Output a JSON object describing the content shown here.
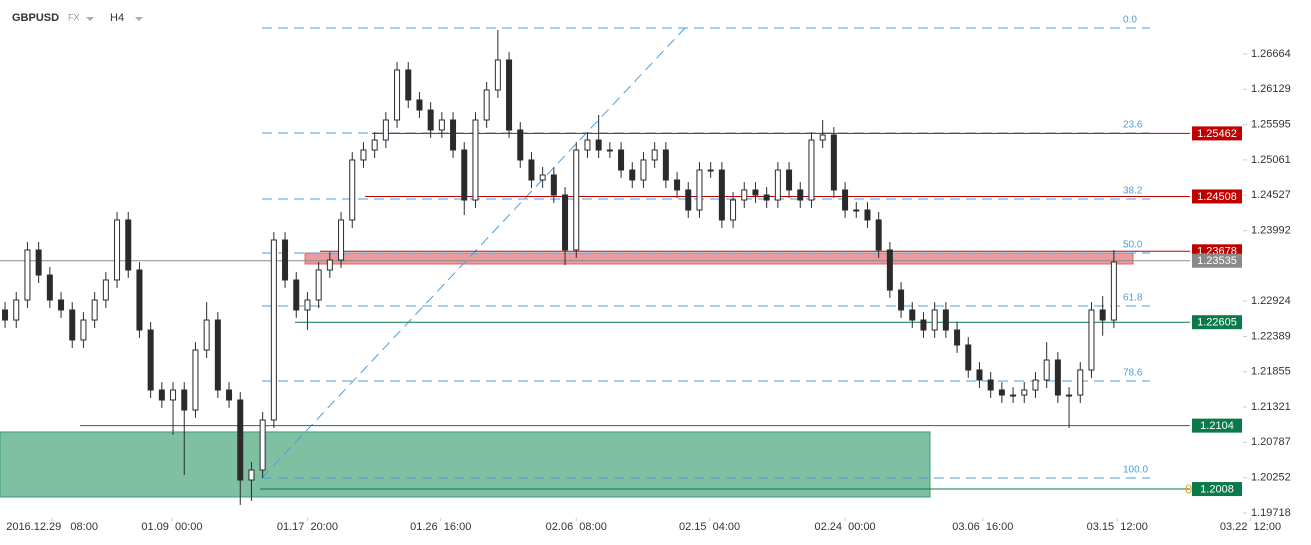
{
  "chart_data": {
    "type": "candlestick",
    "symbol": "GBPUSD",
    "market": "FX",
    "timeframe": "H4",
    "open": [
      1.2279,
      1.22638,
      1.22941,
      1.23698,
      1.23319,
      1.22941,
      1.2279,
      1.22336,
      1.22638,
      1.22941,
      1.23244,
      1.24152,
      1.23395,
      1.22487,
      1.21579,
      1.21428,
      1.21579,
      1.21276,
      1.22184,
      1.22638,
      1.21579,
      1.21428,
      1.20217,
      1.20368,
      1.21125,
      1.23849,
      1.23244,
      1.2279,
      1.22941,
      1.23395,
      1.23546,
      1.24152,
      1.2506,
      1.25211,
      1.25362,
      1.25665,
      1.26422,
      1.25968,
      1.25816,
      1.25514,
      1.25665,
      1.25211,
      1.24454,
      1.25665,
      1.26119,
      1.26573,
      1.25514,
      1.2506,
      1.24757,
      1.24833,
      1.2453,
      1.23698,
      1.25211,
      1.25362,
      1.25211,
      1.25211,
      1.24908,
      1.24757,
      1.2506,
      1.25211,
      1.24757,
      1.24606,
      1.24303,
      1.24908,
      1.24908,
      1.24152,
      1.24454,
      1.24606,
      1.2453,
      1.24454,
      1.24908,
      1.24606,
      1.24454,
      1.25362,
      1.25438,
      1.24606,
      1.24303,
      1.24303,
      1.24152,
      1.23698,
      1.23092,
      1.2279,
      1.22638,
      1.22487,
      1.2279,
      1.22487,
      1.2226,
      1.21882,
      1.2173,
      1.21579,
      1.21503,
      1.21503,
      1.21579,
      1.2173,
      1.22033,
      1.21503,
      1.21503,
      1.21882,
      1.2279,
      1.22638
    ],
    "high": [
      1.2291,
      1.23061,
      1.23818,
      1.23818,
      1.23439,
      1.23061,
      1.2291,
      1.22758,
      1.23061,
      1.23364,
      1.24272,
      1.24272,
      1.23515,
      1.22607,
      1.21699,
      1.21699,
      1.21699,
      1.22304,
      1.2291,
      1.22758,
      1.21699,
      1.21548,
      1.20488,
      1.21245,
      1.23969,
      1.23969,
      1.23364,
      1.23061,
      1.23515,
      1.23666,
      1.24272,
      1.2518,
      1.25331,
      1.25482,
      1.25785,
      1.26542,
      1.26542,
      1.26088,
      1.25936,
      1.25785,
      1.25785,
      1.25331,
      1.25785,
      1.26239,
      1.27027,
      1.26693,
      1.25634,
      1.2518,
      1.24953,
      1.24953,
      1.2465,
      1.25331,
      1.25482,
      1.25741,
      1.25331,
      1.25331,
      1.25028,
      1.2518,
      1.25331,
      1.25331,
      1.24877,
      1.24726,
      1.25028,
      1.25028,
      1.25028,
      1.24574,
      1.24726,
      1.24726,
      1.2465,
      1.25028,
      1.25028,
      1.24726,
      1.25482,
      1.25665,
      1.25558,
      1.24726,
      1.24423,
      1.24423,
      1.24272,
      1.23818,
      1.23212,
      1.2291,
      1.22758,
      1.2291,
      1.2291,
      1.22607,
      1.2238,
      1.22002,
      1.2185,
      1.21699,
      1.21623,
      1.21699,
      1.2185,
      1.22304,
      1.22153,
      1.21623,
      1.22002,
      1.2291,
      1.23,
      1.23698
    ],
    "low": [
      1.22518,
      1.22518,
      1.22821,
      1.23199,
      1.22821,
      1.2267,
      1.22216,
      1.22216,
      1.22518,
      1.22821,
      1.23124,
      1.23275,
      1.22367,
      1.21459,
      1.21308,
      1.20898,
      1.20293,
      1.21156,
      1.22064,
      1.21459,
      1.21308,
      1.19839,
      1.199,
      1.20248,
      1.21005,
      1.23124,
      1.2267,
      1.22487,
      1.22821,
      1.23275,
      1.23426,
      1.24032,
      1.2494,
      1.25091,
      1.25242,
      1.25545,
      1.25848,
      1.25696,
      1.25394,
      1.25394,
      1.25091,
      1.24227,
      1.24334,
      1.25545,
      1.25999,
      1.25394,
      1.2494,
      1.24637,
      1.24637,
      1.2441,
      1.23471,
      1.23578,
      1.25091,
      1.25091,
      1.25091,
      1.24788,
      1.24637,
      1.24637,
      1.2494,
      1.24637,
      1.24486,
      1.24183,
      1.24183,
      1.24788,
      1.24032,
      1.24032,
      1.24334,
      1.2441,
      1.24334,
      1.24334,
      1.24486,
      1.24334,
      1.24334,
      1.25242,
      1.24486,
      1.24183,
      1.24183,
      1.24032,
      1.23578,
      1.22972,
      1.2267,
      1.22518,
      1.22367,
      1.22367,
      1.22367,
      1.2214,
      1.21762,
      1.2161,
      1.21459,
      1.21383,
      1.21383,
      1.21383,
      1.21459,
      1.2161,
      1.21383,
      1.21004,
      1.21383,
      1.21762,
      1.224,
      1.22518
    ],
    "close": [
      1.22638,
      1.22941,
      1.23698,
      1.23319,
      1.22941,
      1.2279,
      1.22336,
      1.22638,
      1.22941,
      1.23244,
      1.24152,
      1.23395,
      1.22487,
      1.21579,
      1.21428,
      1.21579,
      1.21276,
      1.22184,
      1.22638,
      1.21579,
      1.21428,
      1.20217,
      1.20368,
      1.21125,
      1.23849,
      1.23244,
      1.2279,
      1.22941,
      1.23395,
      1.23546,
      1.24152,
      1.2506,
      1.25211,
      1.25362,
      1.25665,
      1.26422,
      1.25968,
      1.25816,
      1.25514,
      1.25665,
      1.25211,
      1.24454,
      1.25665,
      1.26119,
      1.26573,
      1.25514,
      1.2506,
      1.24757,
      1.24833,
      1.2453,
      1.23698,
      1.25211,
      1.25362,
      1.25211,
      1.25211,
      1.24908,
      1.24757,
      1.2506,
      1.25211,
      1.24757,
      1.24606,
      1.24303,
      1.24908,
      1.24908,
      1.24152,
      1.24454,
      1.24606,
      1.2453,
      1.24454,
      1.24908,
      1.24606,
      1.24454,
      1.25362,
      1.25438,
      1.24606,
      1.24303,
      1.24303,
      1.24152,
      1.23698,
      1.23092,
      1.2279,
      1.22638,
      1.22487,
      1.2279,
      1.22487,
      1.2226,
      1.21882,
      1.2173,
      1.21579,
      1.21503,
      1.21503,
      1.21579,
      1.2173,
      1.22033,
      1.21503,
      1.21503,
      1.21882,
      1.2279,
      1.22638,
      1.23516
    ],
    "up_color": "#ffffff",
    "down_color": "#2b2b2b",
    "xlim": [
      -0.45,
      116.6
    ],
    "xticks": [
      {
        "value": 4.2,
        "label": "2016.12.29   08:00"
      },
      {
        "value": 14.9,
        "label": "01.09  00:00"
      },
      {
        "value": 27.0,
        "label": "01.17  20:00"
      },
      {
        "value": 38.9,
        "label": "01.26  16:00"
      },
      {
        "value": 51.0,
        "label": "02.06  08:00"
      },
      {
        "value": 62.9,
        "label": "02.15  04:00"
      },
      {
        "value": 75.0,
        "label": "02.24  00:00"
      },
      {
        "value": 87.3,
        "label": "03.06  16:00"
      },
      {
        "value": 99.3,
        "label": "03.15  12:00"
      },
      {
        "value": 111.2,
        "label": "03.22  12:00"
      }
    ],
    "ylim": [
      1.19642,
      1.27481
    ],
    "yticks": [
      1.26664,
      1.26129,
      1.25595,
      1.25061,
      1.24527,
      1.23992,
      1.22924,
      1.22389,
      1.21855,
      1.21321,
      1.20787,
      1.20252,
      1.19718
    ],
    "levels": [
      {
        "value": 1.25462,
        "color": "#c00000"
      },
      {
        "value": 1.24508,
        "color": "#c00000"
      },
      {
        "value": 1.23678,
        "color": "#c00000"
      },
      {
        "value": 1.22605,
        "color": "#0b7a4b"
      },
      {
        "value": 1.2104,
        "color": "#0b7a4b"
      },
      {
        "value": 1.2008,
        "color": "#0b7a4b"
      }
    ],
    "current": {
      "value": 1.23535,
      "color": "#8a8a8a"
    },
    "fib": [
      {
        "value": 1.27057,
        "label": "0.0"
      },
      {
        "value": 1.25468,
        "label": "23.6"
      },
      {
        "value": 1.24469,
        "label": "38.2"
      },
      {
        "value": 1.23652,
        "label": "50.0"
      },
      {
        "value": 1.2285,
        "label": "61.8"
      },
      {
        "value": 1.21716,
        "label": "78.6"
      },
      {
        "value": 1.20248,
        "label": "100.0"
      }
    ],
    "fib_color": "#4a9fe0",
    "zones": [
      {
        "range": [
          1.23486,
          1.23652
        ],
        "color": "#e06666"
      },
      {
        "range": [
          1.1996,
          1.20944
        ],
        "color": "#3a9e72"
      }
    ],
    "trend_line": [
      1.20248,
      1.27057
    ],
    "marker": "0"
  }
}
